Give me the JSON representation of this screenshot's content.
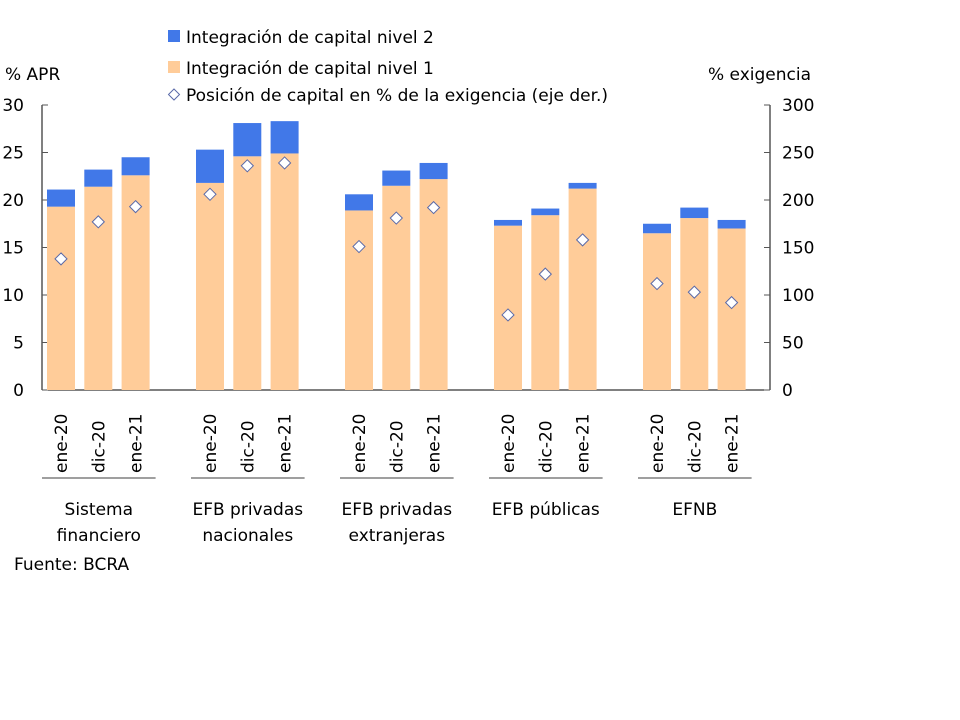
{
  "chart_data": {
    "type": "bar",
    "stacked": true,
    "left_axis_label": "% APR",
    "right_axis_label": "% exigencia",
    "left_ylim": [
      0,
      30
    ],
    "left_ticks": [
      "0",
      "5",
      "10",
      "15",
      "20",
      "25",
      "30"
    ],
    "right_ylim": [
      0,
      300
    ],
    "right_ticks": [
      "0",
      "50",
      "100",
      "150",
      "200",
      "250",
      "300"
    ],
    "legend": [
      {
        "name": "Integración de capital nivel 2",
        "marker": "square",
        "color": "#4178E8"
      },
      {
        "name": "Integración de capital nivel 1",
        "marker": "square",
        "color": "#FFCC99"
      },
      {
        "name": "Posición de capital en % de la exigencia (eje der.)",
        "marker": "diamond",
        "color": "#FFFFFF"
      }
    ],
    "legend_position": "top",
    "groups": [
      {
        "name": "Sistema financiero",
        "name_lines": [
          "Sistema",
          "financiero"
        ],
        "categories": [
          "ene-20",
          "dic-20",
          "ene-21"
        ]
      },
      {
        "name": "EFB privadas nacionales",
        "name_lines": [
          "EFB privadas",
          "nacionales"
        ],
        "categories": [
          "ene-20",
          "dic-20",
          "ene-21"
        ]
      },
      {
        "name": "EFB privadas extranjeras",
        "name_lines": [
          "EFB privadas",
          "extranjeras"
        ],
        "categories": [
          "ene-20",
          "dic-20",
          "ene-21"
        ]
      },
      {
        "name": "EFB públicas",
        "name_lines": [
          "EFB públicas"
        ],
        "categories": [
          "ene-20",
          "dic-20",
          "ene-21"
        ]
      },
      {
        "name": "EFNB",
        "name_lines": [
          "EFNB"
        ],
        "categories": [
          "ene-20",
          "dic-20",
          "ene-21"
        ]
      }
    ],
    "series": [
      {
        "name": "Integración de capital nivel 1",
        "axis": "left",
        "values": [
          [
            19.3,
            21.4,
            22.6
          ],
          [
            21.8,
            24.6,
            24.9
          ],
          [
            18.9,
            21.5,
            22.2
          ],
          [
            17.3,
            18.4,
            21.2
          ],
          [
            16.5,
            18.1,
            17.0
          ]
        ]
      },
      {
        "name": "Integración de capital nivel 2",
        "axis": "left",
        "values": [
          [
            1.8,
            1.8,
            1.9
          ],
          [
            3.5,
            3.5,
            3.4
          ],
          [
            1.7,
            1.6,
            1.7
          ],
          [
            0.6,
            0.7,
            0.6
          ],
          [
            1.0,
            1.1,
            0.9
          ]
        ]
      },
      {
        "name": "Posición de capital en % de la exigencia (eje der.)",
        "axis": "right",
        "type": "scatter",
        "values": [
          [
            138,
            177,
            193
          ],
          [
            206,
            236,
            239
          ],
          [
            151,
            181,
            192
          ],
          [
            79,
            122,
            158
          ],
          [
            112,
            103,
            92
          ]
        ]
      }
    ],
    "source": "Fuente: BCRA"
  }
}
